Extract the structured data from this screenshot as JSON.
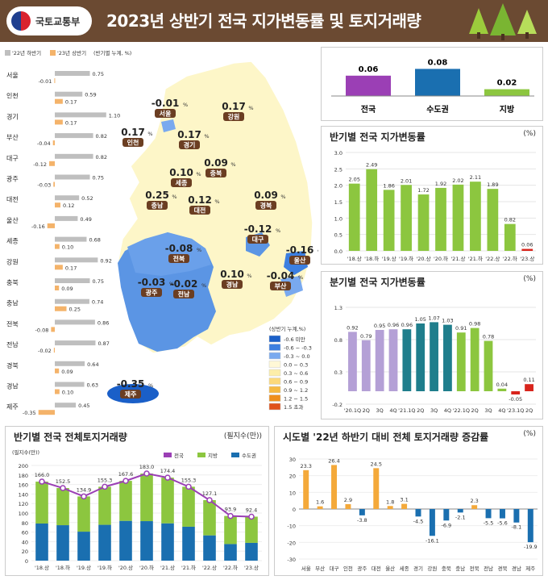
{
  "header": {
    "org": "국토교통부",
    "title": "2023년 상반기 전국 지가변동률 및 토지거래량"
  },
  "legend_top": {
    "h22": "'22년 하반기",
    "h23": "'23년 상반기",
    "unit": "(반기별 누계, %)"
  },
  "colors": {
    "h22": "#bfbfbf",
    "h23": "#f4b36a",
    "nat": "#9b3fb5",
    "cap": "#1a6fb0",
    "loc": "#8cc63f"
  },
  "map_legend": {
    "title": "(상반기 누계,%)",
    "items": [
      "-0.6 미만",
      "-0.6 ~ -0.3",
      "-0.3 ~ 0.0",
      "0.0 ~ 0.3",
      "0.3 ~ 0.6",
      "0.6 ~ 0.9",
      "0.9 ~ 1.2",
      "1.2 ~ 1.5",
      "1.5 초과"
    ],
    "colors": [
      "#1a5fc8",
      "#3c7fe0",
      "#79a9ef",
      "#fff8d6",
      "#fdeea8",
      "#fcd97a",
      "#f6b940",
      "#ef8f1d",
      "#e0511a"
    ]
  },
  "map_labels": [
    {
      "name": "서울",
      "value": "-0.01"
    },
    {
      "name": "강원",
      "value": "0.17"
    },
    {
      "name": "인천",
      "value": "0.17"
    },
    {
      "name": "경기",
      "value": "0.17"
    },
    {
      "name": "충북",
      "value": "0.09"
    },
    {
      "name": "세종",
      "value": "0.10"
    },
    {
      "name": "충남",
      "value": "0.25"
    },
    {
      "name": "대전",
      "value": "0.12"
    },
    {
      "name": "경북",
      "value": "0.09"
    },
    {
      "name": "대구",
      "value": "-0.12"
    },
    {
      "name": "울산",
      "value": "-0.16"
    },
    {
      "name": "전북",
      "value": "-0.08"
    },
    {
      "name": "광주",
      "value": "-0.03"
    },
    {
      "name": "전남",
      "value": "-0.02"
    },
    {
      "name": "경남",
      "value": "0.10"
    },
    {
      "name": "부산",
      "value": "-0.04"
    },
    {
      "name": "제주",
      "value": "-0.35"
    }
  ],
  "chart_data": [
    {
      "type": "bar",
      "title": "",
      "unit": "(반기별 누계, %)",
      "orientation": "horizontal",
      "categories": [
        "서울",
        "인천",
        "경기",
        "부산",
        "대구",
        "광주",
        "대전",
        "울산",
        "세종",
        "강원",
        "충북",
        "충남",
        "전북",
        "전남",
        "경북",
        "경남",
        "제주"
      ],
      "series": [
        {
          "name": "'22년 하반기",
          "values": [
            0.75,
            0.59,
            1.1,
            0.82,
            0.82,
            0.75,
            0.52,
            0.49,
            0.68,
            0.92,
            0.75,
            0.74,
            0.86,
            0.87,
            0.64,
            0.63,
            0.45
          ]
        },
        {
          "name": "'23년 상반기",
          "values": [
            -0.01,
            0.17,
            0.17,
            -0.04,
            -0.12,
            -0.03,
            0.12,
            -0.16,
            0.1,
            0.17,
            0.09,
            0.25,
            -0.08,
            -0.02,
            0.09,
            0.1,
            -0.35
          ]
        }
      ]
    },
    {
      "type": "bar",
      "title": "",
      "categories": [
        "전국",
        "수도권",
        "지방"
      ],
      "values": [
        0.06,
        0.08,
        0.02
      ]
    },
    {
      "type": "bar",
      "title": "반기별 전국 지가변동률",
      "unit": "(%)",
      "ylim": [
        0,
        3.0
      ],
      "categories": [
        "'18.상",
        "'18.하",
        "'19.상",
        "'19.하",
        "'20.상",
        "'20.하",
        "'21.상",
        "'21.하",
        "'22.상",
        "'22.하",
        "'23.상"
      ],
      "values": [
        2.05,
        2.49,
        1.86,
        2.01,
        1.72,
        1.92,
        2.02,
        2.11,
        1.89,
        0.82,
        0.06
      ],
      "yticks": [
        "0.0",
        "0.5",
        "1.0",
        "1.5",
        "2.0",
        "2.5",
        "3.0"
      ]
    },
    {
      "type": "bar",
      "title": "분기별 전국 지가변동률",
      "unit": "(%)",
      "ylim": [
        -0.2,
        1.3
      ],
      "categories": [
        "'20.1Q",
        "2Q",
        "3Q",
        "4Q",
        "'21.1Q",
        "2Q",
        "3Q",
        "4Q",
        "'22.1Q",
        "2Q",
        "3Q",
        "4Q",
        "'23.1Q",
        "2Q"
      ],
      "values": [
        0.92,
        0.79,
        0.95,
        0.96,
        0.96,
        1.05,
        1.07,
        1.03,
        0.91,
        0.98,
        0.78,
        0.04,
        -0.05,
        0.11
      ],
      "yticks": [
        "-0.2",
        "0.3",
        "0.8",
        "1.3"
      ]
    },
    {
      "type": "bar",
      "title": "반기별 전국 전체토지거래량",
      "unit": "(필지수(만))",
      "ylabel": "(필지수(만))",
      "ylim": [
        0,
        200
      ],
      "categories": [
        "'18.상",
        "'18.하",
        "'19.상",
        "'19.하",
        "'20.상",
        "'20.하",
        "'21.상",
        "'21.하",
        "'22.상",
        "'22.하",
        "'23.상"
      ],
      "series": [
        {
          "name": "전국",
          "values": [
            166.0,
            152.5,
            134.9,
            155.3,
            167.6,
            183.0,
            174.4,
            155.3,
            127.1,
            93.9,
            92.4
          ]
        },
        {
          "name": "지방",
          "values": [
            88,
            78,
            74,
            80,
            84,
            100,
            96,
            84,
            74,
            59,
            55
          ]
        },
        {
          "name": "수도권",
          "values": [
            78,
            74.5,
            60.9,
            75.3,
            83.6,
            83,
            78.4,
            71.3,
            53.1,
            34.9,
            37.4
          ]
        }
      ],
      "yticks": [
        "0",
        "20",
        "40",
        "60",
        "80",
        "100",
        "120",
        "140",
        "160",
        "180",
        "200"
      ]
    },
    {
      "type": "bar",
      "title": "시도별 '22년 하반기 대비 전체 토지거래량 증감률",
      "unit": "(%)",
      "ylim": [
        -30,
        30
      ],
      "categories": [
        "서울",
        "부산",
        "대구",
        "인천",
        "광주",
        "대전",
        "울산",
        "세종",
        "경기",
        "강원",
        "충북",
        "충남",
        "전북",
        "전남",
        "경북",
        "경남",
        "제주"
      ],
      "values": [
        23.3,
        1.6,
        26.4,
        2.9,
        -3.8,
        24.5,
        1.8,
        3.1,
        -4.5,
        -16.1,
        -6.9,
        -2.1,
        2.3,
        -5.5,
        -5.6,
        -8.1,
        -19.9
      ],
      "yticks": [
        "30",
        "20",
        "10",
        "0",
        "-10",
        "-20",
        "-30"
      ]
    }
  ]
}
